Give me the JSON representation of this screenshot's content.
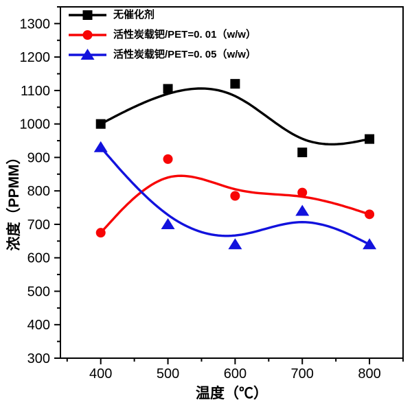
{
  "figure": {
    "background": "#ffffff",
    "axis_color": "#000000"
  },
  "chart_data": {
    "type": "line",
    "line_style": "b-spline-smooth",
    "grid": false,
    "title": "",
    "xlabel": "温度（℃）",
    "ylabel": "浓度（PPMM）",
    "x": [
      400,
      500,
      600,
      700,
      800
    ],
    "xlim": [
      340,
      850
    ],
    "ylim": [
      300,
      1350
    ],
    "xticks": [
      400,
      500,
      600,
      700,
      800
    ],
    "yticks": [
      300,
      400,
      500,
      600,
      700,
      800,
      900,
      1000,
      1100,
      1200,
      1300
    ],
    "x_minor_ticks": [
      350,
      450,
      550,
      650,
      750,
      850
    ],
    "y_minor_ticks": [
      350,
      450,
      550,
      650,
      750,
      850,
      950,
      1050,
      1150,
      1250,
      1350
    ],
    "legend_position": "top-left-inside",
    "series": [
      {
        "name": "无催化剂",
        "color": "#000000",
        "marker": "square",
        "values": [
          1000,
          1105,
          1120,
          915,
          955
        ]
      },
      {
        "name": "活性炭载钯/PET=0. 01（w/w）",
        "color": "#f70505",
        "marker": "circle",
        "values": [
          675,
          895,
          785,
          795,
          730
        ]
      },
      {
        "name": "活性炭载钯/PET=0. 05（w/w）",
        "color": "#1212dd",
        "marker": "triangle",
        "values": [
          930,
          700,
          640,
          740,
          640
        ]
      }
    ]
  }
}
